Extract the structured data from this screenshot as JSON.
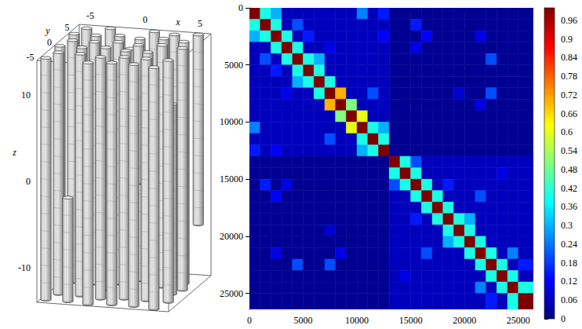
{
  "chart_data": [
    {
      "type": "cylinders3d",
      "xlabel": "x",
      "ylabel": "y",
      "zlabel": "z",
      "xlim": [
        -6,
        6
      ],
      "ylim": [
        -6,
        6
      ],
      "zlim": [
        -14,
        14
      ],
      "xticks": [
        -5,
        0,
        5
      ],
      "yticks": [
        -5,
        0,
        5
      ],
      "zticks": [
        -10,
        0,
        10
      ],
      "radius": 0.45,
      "cylinders": [
        [
          -5,
          5,
          -14,
          14
        ],
        [
          -3,
          5.5,
          -14,
          14
        ],
        [
          -1,
          5,
          -14,
          12
        ],
        [
          1,
          5.5,
          -14,
          14
        ],
        [
          3,
          5,
          -14,
          14
        ],
        [
          5,
          5.5,
          -8,
          14
        ],
        [
          -5.5,
          3,
          -14,
          14
        ],
        [
          -3.5,
          3,
          -14,
          14
        ],
        [
          -1.5,
          3.5,
          -14,
          14
        ],
        [
          0.5,
          3,
          -14,
          14
        ],
        [
          2.5,
          3.5,
          -14,
          14
        ],
        [
          4.5,
          3,
          -14,
          14
        ],
        [
          -5,
          1,
          -14,
          14
        ],
        [
          -3,
          1,
          -14,
          14
        ],
        [
          -1,
          1.5,
          -14,
          14
        ],
        [
          1,
          1,
          -2,
          14
        ],
        [
          3,
          1.5,
          -14,
          14
        ],
        [
          5,
          1,
          -14,
          14
        ],
        [
          -5.5,
          -1,
          -14,
          14
        ],
        [
          -3.5,
          -1,
          -14,
          14
        ],
        [
          -1.5,
          -0.5,
          -14,
          14
        ],
        [
          0.5,
          -1,
          -14,
          14
        ],
        [
          2.5,
          -1,
          -14,
          14
        ],
        [
          4.5,
          -0.5,
          -14,
          8
        ],
        [
          -5,
          -3,
          -14,
          14
        ],
        [
          -3,
          -3,
          -14,
          14
        ],
        [
          -1,
          -3.5,
          -14,
          14
        ],
        [
          1,
          -3,
          -14,
          14
        ],
        [
          3,
          -3,
          -14,
          14
        ],
        [
          5,
          -3,
          -14,
          14
        ],
        [
          -5.5,
          -5,
          -14,
          14
        ],
        [
          -3.5,
          -5,
          -14,
          -2
        ],
        [
          -1.5,
          -5.5,
          -14,
          14
        ],
        [
          0.5,
          -5,
          -14,
          14
        ],
        [
          2.5,
          -5,
          -14,
          14
        ],
        [
          4.5,
          -5.5,
          -14,
          14
        ]
      ]
    },
    {
      "type": "heatmap",
      "xlim": [
        0,
        26400
      ],
      "ylim": [
        26400,
        0
      ],
      "xticks": [
        0,
        5000,
        10000,
        15000,
        20000,
        25000
      ],
      "yticks": [
        0,
        5000,
        10000,
        15000,
        20000,
        25000
      ],
      "bins": [
        0,
        1000,
        2000,
        3000,
        4000,
        5000,
        6000,
        7000,
        8000,
        9000,
        10000,
        11000,
        12000,
        13000,
        14000,
        15000,
        16000,
        17000,
        18000,
        19000,
        20000,
        21000,
        22000,
        23000,
        24000,
        25000,
        26400
      ],
      "z": [
        [
          1,
          0.4,
          0.3,
          0.06,
          0.06,
          0.06,
          0.06,
          0.06,
          0.06,
          0.06,
          0.25,
          0.06,
          0.15,
          0.02,
          0.02,
          0.02,
          0.02,
          0.02,
          0.02,
          0.02,
          0.02,
          0.02,
          0.02,
          0.02,
          0.02,
          0.02
        ],
        [
          0.4,
          1,
          0.4,
          0.06,
          0.2,
          0.06,
          0.06,
          0.06,
          0.06,
          0.06,
          0.06,
          0.06,
          0.06,
          0.02,
          0.02,
          0.15,
          0.02,
          0.02,
          0.02,
          0.02,
          0.02,
          0.02,
          0.02,
          0.02,
          0.02,
          0.02
        ],
        [
          0.3,
          0.4,
          1,
          0.4,
          0.06,
          0.15,
          0.06,
          0.06,
          0.06,
          0.06,
          0.06,
          0.06,
          0.12,
          0.02,
          0.02,
          0.02,
          0.12,
          0.02,
          0.02,
          0.02,
          0.02,
          0.1,
          0.02,
          0.02,
          0.02,
          0.02
        ],
        [
          0.06,
          0.06,
          0.4,
          1,
          0.4,
          0.06,
          0.06,
          0.1,
          0.06,
          0.06,
          0.06,
          0.06,
          0.06,
          0.02,
          0.02,
          0.1,
          0.02,
          0.02,
          0.02,
          0.02,
          0.02,
          0.02,
          0.02,
          0.02,
          0.02,
          0.02
        ],
        [
          0.06,
          0.2,
          0.06,
          0.4,
          1,
          0.4,
          0.3,
          0.06,
          0.06,
          0.06,
          0.06,
          0.06,
          0.06,
          0.02,
          0.02,
          0.02,
          0.02,
          0.02,
          0.02,
          0.02,
          0.02,
          0.02,
          0.2,
          0.02,
          0.02,
          0.02
        ],
        [
          0.06,
          0.06,
          0.15,
          0.06,
          0.4,
          1,
          0.4,
          0.06,
          0.06,
          0.06,
          0.06,
          0.06,
          0.06,
          0.02,
          0.02,
          0.02,
          0.02,
          0.02,
          0.02,
          0.02,
          0.02,
          0.02,
          0.02,
          0.02,
          0.02,
          0.02
        ],
        [
          0.06,
          0.06,
          0.06,
          0.06,
          0.3,
          0.4,
          1,
          0.4,
          0.06,
          0.06,
          0.06,
          0.06,
          0.06,
          0.02,
          0.02,
          0.02,
          0.02,
          0.02,
          0.02,
          0.02,
          0.02,
          0.02,
          0.02,
          0.02,
          0.02,
          0.02
        ],
        [
          0.06,
          0.06,
          0.06,
          0.1,
          0.06,
          0.06,
          0.4,
          1,
          0.7,
          0.06,
          0.06,
          0.2,
          0.06,
          0.02,
          0.02,
          0.02,
          0.02,
          0.02,
          0.02,
          0.08,
          0.02,
          0.02,
          0.2,
          0.02,
          0.02,
          0.02
        ],
        [
          0.06,
          0.06,
          0.06,
          0.06,
          0.06,
          0.06,
          0.06,
          0.7,
          1,
          0.5,
          0.06,
          0.06,
          0.06,
          0.02,
          0.02,
          0.02,
          0.02,
          0.02,
          0.02,
          0.02,
          0.02,
          0.1,
          0.02,
          0.02,
          0.02,
          0.02
        ],
        [
          0.06,
          0.06,
          0.06,
          0.06,
          0.06,
          0.06,
          0.06,
          0.06,
          0.5,
          1,
          0.6,
          0.06,
          0.06,
          0.02,
          0.02,
          0.02,
          0.02,
          0.02,
          0.02,
          0.02,
          0.02,
          0.02,
          0.02,
          0.02,
          0.02,
          0.02
        ],
        [
          0.25,
          0.06,
          0.06,
          0.06,
          0.06,
          0.06,
          0.06,
          0.06,
          0.06,
          0.6,
          1,
          0.4,
          0.3,
          0.02,
          0.02,
          0.02,
          0.02,
          0.02,
          0.02,
          0.02,
          0.02,
          0.02,
          0.02,
          0.02,
          0.02,
          0.02
        ],
        [
          0.06,
          0.06,
          0.06,
          0.06,
          0.06,
          0.06,
          0.06,
          0.2,
          0.06,
          0.06,
          0.4,
          1,
          0.4,
          0.02,
          0.02,
          0.02,
          0.02,
          0.02,
          0.02,
          0.02,
          0.02,
          0.02,
          0.02,
          0.02,
          0.02,
          0.02
        ],
        [
          0.15,
          0.06,
          0.12,
          0.06,
          0.06,
          0.06,
          0.06,
          0.06,
          0.06,
          0.06,
          0.3,
          0.4,
          1,
          0.02,
          0.02,
          0.02,
          0.02,
          0.02,
          0.02,
          0.02,
          0.02,
          0.02,
          0.02,
          0.02,
          0.02,
          0.02
        ],
        [
          0.02,
          0.02,
          0.02,
          0.02,
          0.02,
          0.02,
          0.02,
          0.02,
          0.02,
          0.02,
          0.02,
          0.02,
          0.02,
          1,
          0.4,
          0.2,
          0.06,
          0.06,
          0.06,
          0.06,
          0.06,
          0.06,
          0.06,
          0.06,
          0.06,
          0.06
        ],
        [
          0.02,
          0.02,
          0.02,
          0.02,
          0.02,
          0.02,
          0.02,
          0.02,
          0.02,
          0.02,
          0.02,
          0.02,
          0.02,
          0.4,
          1,
          0.4,
          0.06,
          0.06,
          0.06,
          0.06,
          0.06,
          0.06,
          0.06,
          0.1,
          0.06,
          0.06
        ],
        [
          0.02,
          0.15,
          0.02,
          0.1,
          0.02,
          0.02,
          0.02,
          0.02,
          0.02,
          0.02,
          0.02,
          0.02,
          0.02,
          0.2,
          0.4,
          1,
          0.4,
          0.06,
          0.15,
          0.06,
          0.06,
          0.06,
          0.06,
          0.06,
          0.06,
          0.06
        ],
        [
          0.02,
          0.02,
          0.12,
          0.02,
          0.02,
          0.02,
          0.02,
          0.02,
          0.02,
          0.02,
          0.02,
          0.02,
          0.02,
          0.06,
          0.06,
          0.4,
          1,
          0.4,
          0.06,
          0.06,
          0.06,
          0.2,
          0.06,
          0.06,
          0.06,
          0.06
        ],
        [
          0.02,
          0.02,
          0.02,
          0.02,
          0.02,
          0.02,
          0.02,
          0.02,
          0.02,
          0.02,
          0.02,
          0.02,
          0.02,
          0.06,
          0.06,
          0.06,
          0.4,
          1,
          0.4,
          0.06,
          0.06,
          0.06,
          0.06,
          0.06,
          0.06,
          0.06
        ],
        [
          0.02,
          0.02,
          0.02,
          0.02,
          0.02,
          0.02,
          0.02,
          0.02,
          0.02,
          0.02,
          0.02,
          0.02,
          0.02,
          0.06,
          0.06,
          0.15,
          0.06,
          0.4,
          1,
          0.4,
          0.3,
          0.06,
          0.06,
          0.06,
          0.06,
          0.06
        ],
        [
          0.02,
          0.02,
          0.02,
          0.02,
          0.02,
          0.02,
          0.02,
          0.08,
          0.02,
          0.02,
          0.02,
          0.02,
          0.02,
          0.06,
          0.06,
          0.06,
          0.06,
          0.06,
          0.4,
          1,
          0.4,
          0.06,
          0.06,
          0.06,
          0.06,
          0.06
        ],
        [
          0.02,
          0.02,
          0.02,
          0.02,
          0.02,
          0.02,
          0.02,
          0.02,
          0.02,
          0.02,
          0.02,
          0.02,
          0.02,
          0.06,
          0.06,
          0.06,
          0.06,
          0.06,
          0.3,
          0.4,
          1,
          0.4,
          0.06,
          0.06,
          0.06,
          0.06
        ],
        [
          0.02,
          0.02,
          0.1,
          0.02,
          0.02,
          0.02,
          0.02,
          0.02,
          0.1,
          0.02,
          0.02,
          0.02,
          0.02,
          0.06,
          0.06,
          0.06,
          0.2,
          0.06,
          0.06,
          0.06,
          0.4,
          1,
          0.4,
          0.06,
          0.25,
          0.06
        ],
        [
          0.02,
          0.02,
          0.02,
          0.02,
          0.2,
          0.02,
          0.02,
          0.2,
          0.02,
          0.02,
          0.02,
          0.02,
          0.02,
          0.06,
          0.06,
          0.06,
          0.06,
          0.06,
          0.06,
          0.06,
          0.06,
          0.4,
          1,
          0.4,
          0.06,
          0.15
        ],
        [
          0.02,
          0.02,
          0.02,
          0.02,
          0.02,
          0.02,
          0.02,
          0.02,
          0.02,
          0.02,
          0.02,
          0.02,
          0.02,
          0.06,
          0.1,
          0.06,
          0.06,
          0.06,
          0.06,
          0.06,
          0.06,
          0.06,
          0.4,
          1,
          0.4,
          0.06
        ],
        [
          0.02,
          0.02,
          0.02,
          0.02,
          0.02,
          0.02,
          0.02,
          0.02,
          0.02,
          0.02,
          0.02,
          0.02,
          0.02,
          0.06,
          0.06,
          0.06,
          0.06,
          0.06,
          0.06,
          0.06,
          0.06,
          0.25,
          0.06,
          0.4,
          1,
          0.4
        ],
        [
          0.02,
          0.02,
          0.02,
          0.02,
          0.02,
          0.02,
          0.02,
          0.02,
          0.02,
          0.02,
          0.02,
          0.02,
          0.02,
          0.06,
          0.06,
          0.06,
          0.06,
          0.06,
          0.06,
          0.06,
          0.06,
          0.06,
          0.15,
          0.06,
          0.4,
          1
        ]
      ],
      "colorbar": {
        "range": [
          0,
          1
        ],
        "ticks": [
          0,
          0.06,
          0.12,
          0.18,
          0.24,
          0.3,
          0.36,
          0.42,
          0.48,
          0.54,
          0.6,
          0.66,
          0.72,
          0.78,
          0.84,
          0.9,
          0.96
        ],
        "colors": [
          "#00007f",
          "#0000ff",
          "#007fff",
          "#00ffff",
          "#7fff7f",
          "#ffff00",
          "#ff7f00",
          "#ff0000",
          "#7f0000"
        ]
      }
    }
  ]
}
